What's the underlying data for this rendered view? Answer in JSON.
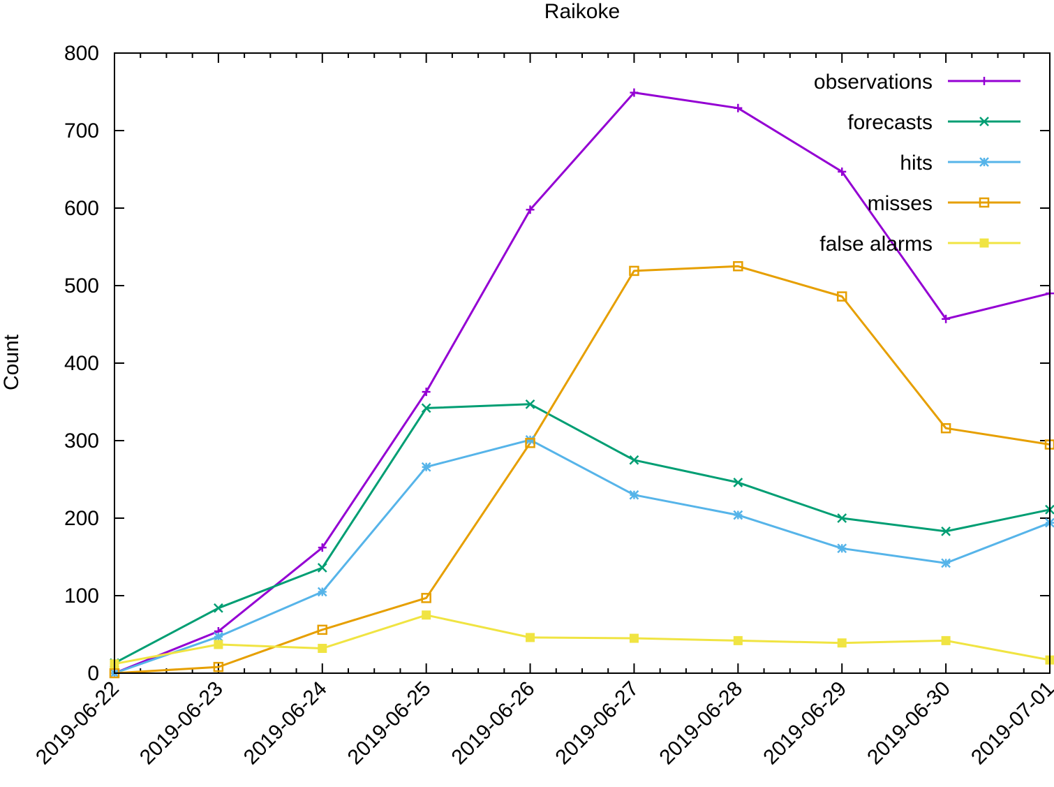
{
  "chart_data": {
    "type": "line",
    "title": "Raikoke",
    "xlabel": "",
    "ylabel": "Count",
    "x": [
      "2019-06-22",
      "2019-06-23",
      "2019-06-24",
      "2019-06-25",
      "2019-06-26",
      "2019-06-27",
      "2019-06-28",
      "2019-06-29",
      "2019-06-30",
      "2019-07-01"
    ],
    "yticks": [
      "0",
      "100",
      "200",
      "300",
      "400",
      "500",
      "600",
      "700",
      "800"
    ],
    "ylim": [
      0,
      800
    ],
    "grid": false,
    "legend_position": "top-right",
    "series": [
      {
        "name": "observations",
        "color": "#9400d3",
        "marker": "plus",
        "values": [
          0,
          54,
          162,
          363,
          598,
          749,
          729,
          647,
          457,
          490
        ]
      },
      {
        "name": "forecasts",
        "color": "#009e73",
        "marker": "cross",
        "values": [
          13,
          84,
          136,
          342,
          347,
          275,
          246,
          200,
          183,
          211
        ]
      },
      {
        "name": "hits",
        "color": "#56b4e9",
        "marker": "star",
        "values": [
          0,
          47,
          105,
          266,
          301,
          230,
          204,
          161,
          142,
          194
        ]
      },
      {
        "name": "misses",
        "color": "#e69f00",
        "marker": "open-square",
        "values": [
          0,
          8,
          56,
          97,
          297,
          519,
          525,
          486,
          316,
          295
        ]
      },
      {
        "name": "false alarms",
        "color": "#f0e442",
        "marker": "filled-square",
        "values": [
          12,
          37,
          32,
          75,
          46,
          45,
          42,
          39,
          42,
          17
        ]
      }
    ]
  }
}
